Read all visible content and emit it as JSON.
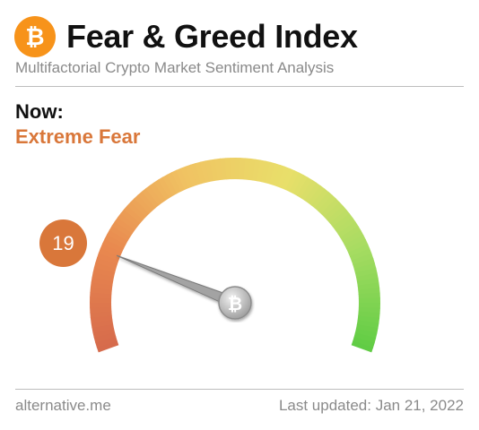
{
  "header": {
    "title": "Fear & Greed Index",
    "subtitle": "Multifactorial Crypto Market Sentiment Analysis",
    "logo_icon": "bitcoin-icon",
    "logo_glyph": "₿"
  },
  "current": {
    "label": "Now:",
    "status": "Extreme Fear",
    "value": "19",
    "status_color": "#d9773a"
  },
  "gauge": {
    "min": 0,
    "max": 100,
    "value": 19,
    "hub_icon": "bitcoin-icon",
    "hub_glyph": "₿",
    "colors": [
      "#d66a4c",
      "#e9894f",
      "#f0c262",
      "#e9df6a",
      "#a7dc62",
      "#5fcc44"
    ]
  },
  "footer": {
    "source": "alternative.me",
    "updated": "Last updated: Jan 21, 2022"
  }
}
